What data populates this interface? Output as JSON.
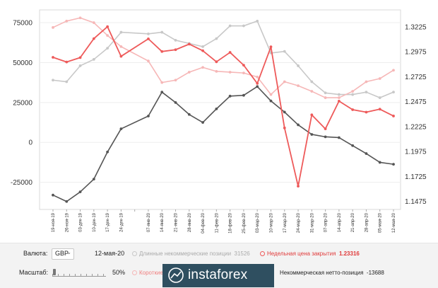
{
  "chart_data": {
    "type": "line",
    "x_labels": [
      "19-ноя-19",
      "26-ноя-19",
      "03-дек-19",
      "10-дек-19",
      "17-дек-19",
      "24-дек-19",
      "",
      "07-янв-20",
      "14-янв-20",
      "21-янв-20",
      "28-янв-20",
      "04-фев-20",
      "11-фев-20",
      "18-фев-20",
      "25-фев-20",
      "03-мар-20",
      "10-мар-20",
      "17-мар-20",
      "24-мар-20",
      "31-мар-20",
      "07-апр-20",
      "14-апр-20",
      "21-апр-20",
      "28-апр-20",
      "05-мая-20",
      "12-мая-20"
    ],
    "x_index": [
      0,
      1,
      2,
      3,
      4,
      5,
      6,
      7,
      8,
      9,
      10,
      11,
      12,
      13,
      14,
      15,
      16,
      17,
      18,
      19,
      20,
      21,
      22,
      23,
      24,
      25
    ],
    "left_axis": {
      "ticks": [
        "75000",
        "50000",
        "25000",
        "0",
        "-25000"
      ],
      "values": [
        75000,
        50000,
        25000,
        0,
        -25000
      ],
      "range": [
        -42000,
        83000
      ]
    },
    "right_axis": {
      "ticks": [
        "1.3225",
        "1.2975",
        "1.2725",
        "1.2475",
        "1.2225",
        "1.1975",
        "1.1725",
        "1.1475"
      ],
      "values": [
        1.3225,
        1.2975,
        1.2725,
        1.2475,
        1.2225,
        1.1975,
        1.1725,
        1.1475
      ],
      "range": [
        1.1395,
        1.3395
      ]
    },
    "series": [
      {
        "key": "long",
        "axis": "left",
        "color": "#c8c8c8",
        "x": [
          0,
          1,
          2,
          3,
          4,
          5,
          7,
          8,
          9,
          10,
          11,
          12,
          13,
          14,
          15,
          16,
          17,
          18,
          19,
          20,
          21,
          22,
          23,
          24,
          25
        ],
        "values": [
          39000,
          38000,
          48000,
          52000,
          59000,
          69000,
          68000,
          69000,
          64000,
          62000,
          60000,
          65000,
          73000,
          73000,
          76000,
          56000,
          57000,
          48000,
          38000,
          31000,
          30000,
          30000,
          31500,
          28000,
          31526
        ]
      },
      {
        "key": "short",
        "axis": "left",
        "color": "#f6b7b7",
        "x": [
          0,
          1,
          2,
          3,
          4,
          5,
          7,
          8,
          9,
          10,
          11,
          12,
          13,
          14,
          15,
          16,
          17,
          18,
          19,
          20,
          21,
          22,
          23,
          24,
          25
        ],
        "values": [
          72000,
          76000,
          78000,
          75000,
          67000,
          60000,
          51000,
          37500,
          39000,
          44000,
          47000,
          44500,
          44000,
          43500,
          41000,
          30000,
          38000,
          35500,
          32000,
          28000,
          28000,
          32000,
          38000,
          40000,
          45214
        ]
      },
      {
        "key": "net",
        "axis": "left",
        "color": "#555555",
        "x": [
          0,
          1,
          2,
          3,
          4,
          5,
          7,
          8,
          9,
          10,
          11,
          12,
          13,
          14,
          15,
          16,
          17,
          18,
          19,
          20,
          21,
          22,
          23,
          24,
          25
        ],
        "values": [
          -33000,
          -37000,
          -31000,
          -23000,
          -6000,
          8500,
          16500,
          31500,
          25000,
          17500,
          12500,
          21000,
          29000,
          29500,
          35000,
          26000,
          19000,
          11000,
          5000,
          3500,
          3000,
          -2000,
          -7000,
          -12500,
          -13688
        ]
      },
      {
        "key": "close",
        "axis": "right",
        "color": "#ee5a5a",
        "x": [
          0,
          1,
          2,
          3,
          4,
          5,
          7,
          8,
          9,
          10,
          11,
          12,
          13,
          14,
          15,
          16,
          17,
          18,
          19,
          20,
          21,
          22,
          23,
          24,
          25
        ],
        "values": [
          1.292,
          1.2873,
          1.2917,
          1.3107,
          1.3227,
          1.293,
          1.3105,
          1.2978,
          1.2996,
          1.3052,
          1.2986,
          1.2875,
          1.2969,
          1.2841,
          1.2658,
          1.3025,
          1.2212,
          1.1628,
          1.2343,
          1.2203,
          1.2481,
          1.2395,
          1.237,
          1.24,
          1.23316
        ]
      }
    ]
  },
  "footer": {
    "currency_label": "Валюта:",
    "currency_value": "GBP",
    "date": "12-мая-20",
    "long_label": "Длинные некоммерческие позиции",
    "long_value": "31526",
    "close_label": "Недельная цена закрытия",
    "close_value": "1.23316",
    "scale_label": "Масштаб:",
    "scale_value": "50%",
    "short_label": "Короткие",
    "net_label": "Некоммерческая нетто-позиция",
    "net_value": "-13688"
  },
  "logo": {
    "text": "instaforex"
  },
  "colors": {
    "long": "#c8c8c8",
    "short": "#f6b7b7",
    "net": "#555555",
    "close": "#ee5a5a",
    "close_text": "#e03a3a"
  }
}
